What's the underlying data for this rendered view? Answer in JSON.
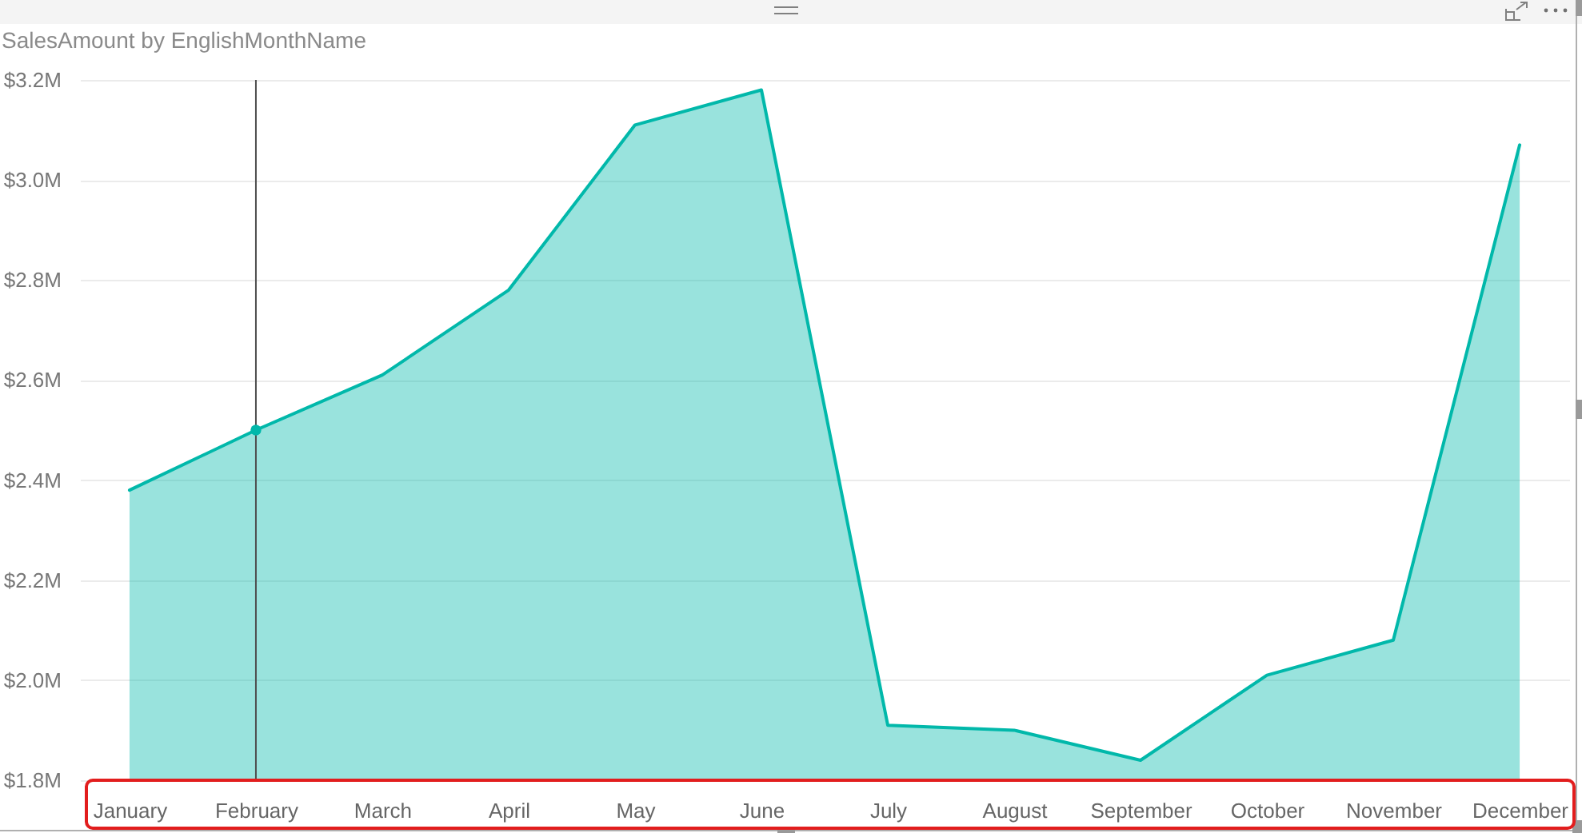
{
  "chart_data": {
    "type": "area",
    "title": "SalesAmount by EnglishMonthName",
    "categories": [
      "January",
      "February",
      "March",
      "April",
      "May",
      "June",
      "July",
      "August",
      "September",
      "October",
      "November",
      "December"
    ],
    "series": [
      {
        "color": "#01b8aa",
        "values": [
          2.38,
          2.5,
          2.61,
          2.78,
          3.11,
          3.18,
          1.91,
          1.9,
          1.84,
          2.01,
          2.08,
          3.07
        ]
      },
      {
        "type": "scatter",
        "color": "#01b8aa",
        "x": [
          "February"
        ],
        "values": [
          2.5
        ]
      }
    ],
    "ylim": [
      1.8,
      3.2
    ],
    "yticks": [
      {
        "value": 1.8,
        "label": "$1.8M"
      },
      {
        "value": 2.0,
        "label": "$2.0M"
      },
      {
        "value": 2.2,
        "label": "$2.2M"
      },
      {
        "value": 2.4,
        "label": "$2.4M"
      },
      {
        "value": 2.6,
        "label": "$2.6M"
      },
      {
        "value": 2.8,
        "label": "$2.8M"
      },
      {
        "value": 3.0,
        "label": "$3.0M"
      },
      {
        "value": 3.2,
        "label": "$3.2M"
      }
    ],
    "grid": "y",
    "ref_lines": [
      {
        "axis": "x",
        "value": "February",
        "color": "#4d4d4d"
      }
    ]
  }
}
